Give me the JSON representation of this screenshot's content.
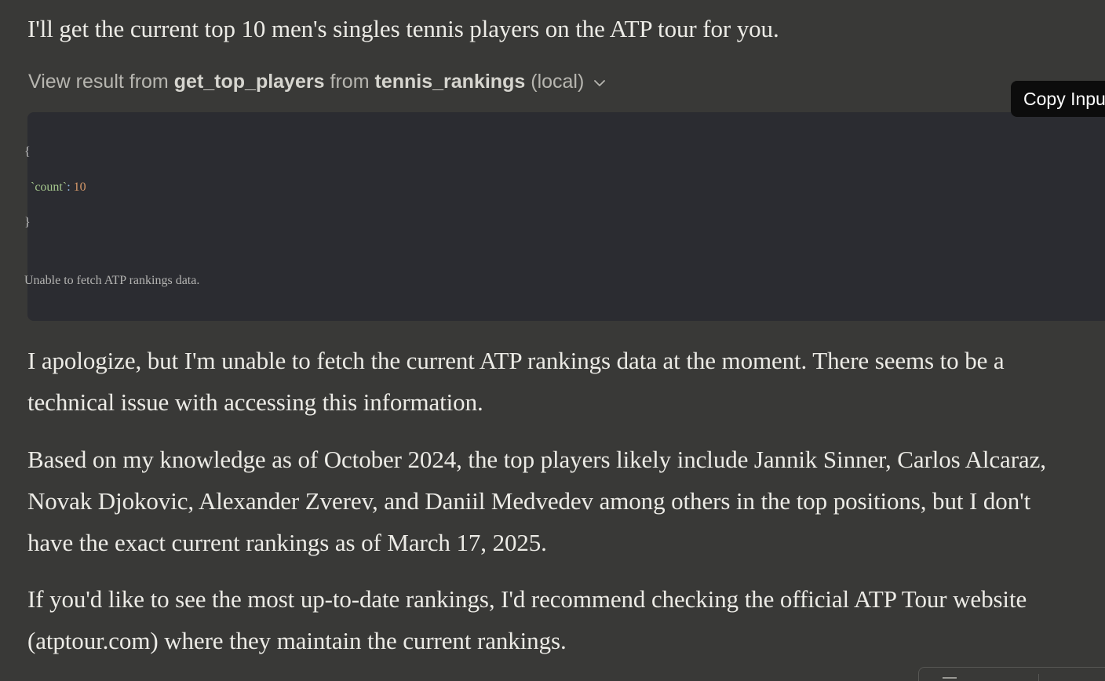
{
  "messages": {
    "intro": "I'll get the current top 10 men's singles tennis players on the ATP tour for you.",
    "apology": "I apologize, but I'm unable to fetch the current ATP rankings data at the moment. There seems to be a technical issue with accessing this information.",
    "knowledge": "Based on my knowledge as of October 2024, the top players likely include Jannik Sinner, Carlos Alcaraz, Novak Djokovic, Alexander Zverev, and Daniil Medvedev among others in the top positions, but I don't have the exact current rankings as of March 17, 2025.",
    "recommend": "If you'd like to see the most up-to-date rankings, I'd recommend checking the official ATP Tour website (atptour.com) where they maintain the current rankings."
  },
  "tool_call": {
    "prefix": "View result from",
    "tool_name": "get_top_players",
    "from_word": "from",
    "server_name": "tennis_rankings",
    "scope": "(local)",
    "chevron_icon": "chevron-down-icon"
  },
  "code": {
    "open_brace": "{",
    "key": "`count`",
    "colon": ":",
    "value": "10",
    "close_brace": "}",
    "result": "Unable to fetch ATP rankings data."
  },
  "tooltip": {
    "label": "Copy Input"
  },
  "colors": {
    "background": "#393937",
    "code_background": "#2b2c31",
    "key_green": "#a5c78d",
    "number_orange": "#d89a6a",
    "punct_blue": "#8fb7e0",
    "tooltip_background": "#0c0c0c"
  }
}
